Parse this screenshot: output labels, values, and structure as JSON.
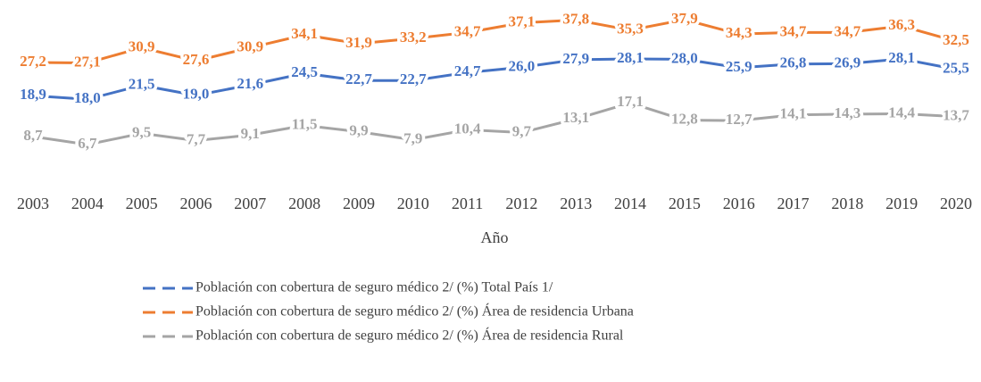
{
  "chart_data": {
    "type": "line",
    "x_label": "Año",
    "categories": [
      "2003",
      "2004",
      "2005",
      "2006",
      "2007",
      "2008",
      "2009",
      "2010",
      "2011",
      "2012",
      "2013",
      "2014",
      "2015",
      "2016",
      "2017",
      "2018",
      "2019",
      "2020"
    ],
    "series": [
      {
        "name": "Población con cobertura de seguro médico 2/ (%) Total País 1/",
        "color": "#4472c4",
        "values": [
          18.9,
          18.0,
          21.5,
          19.0,
          21.6,
          24.5,
          22.7,
          22.7,
          24.7,
          26.0,
          27.9,
          28.1,
          28.0,
          25.9,
          26.8,
          26.9,
          28.1,
          25.5
        ],
        "value_labels": [
          "18,9",
          "18,0",
          "21,5",
          "19,0",
          "21,6",
          "24,5",
          "22,7",
          "22,7",
          "24,7",
          "26,0",
          "27,9",
          "28,1",
          "28,0",
          "25,9",
          "26,8",
          "26,9",
          "28,1",
          "25,5"
        ]
      },
      {
        "name": "Población con cobertura de seguro médico 2/ (%) Área de residencia Urbana",
        "color": "#ed7d31",
        "values": [
          27.2,
          27.1,
          30.9,
          27.6,
          30.9,
          34.1,
          31.9,
          33.2,
          34.7,
          37.1,
          37.8,
          35.3,
          37.9,
          34.3,
          34.7,
          34.7,
          36.3,
          32.5
        ],
        "value_labels": [
          "27,2",
          "27,1",
          "30,9",
          "27,6",
          "30,9",
          "34,1",
          "31,9",
          "33,2",
          "34,7",
          "37,1",
          "37,8",
          "35,3",
          "37,9",
          "34,3",
          "34,7",
          "34,7",
          "36,3",
          "32,5"
        ]
      },
      {
        "name": "Población con cobertura de seguro médico 2/ (%) Área de residencia Rural",
        "color": "#a5a5a5",
        "values": [
          8.7,
          6.7,
          9.5,
          7.7,
          9.1,
          11.5,
          9.9,
          7.9,
          10.4,
          9.7,
          13.1,
          17.1,
          12.8,
          12.7,
          14.1,
          14.3,
          14.4,
          13.7
        ],
        "value_labels": [
          "8,7",
          "6,7",
          "9,5",
          "7,7",
          "9,1",
          "11,5",
          "9,9",
          "7,9",
          "10,4",
          "9,7",
          "13,1",
          "17,1",
          "12,8",
          "12,7",
          "14,1",
          "14,3",
          "14,4",
          "13,7"
        ]
      }
    ]
  }
}
